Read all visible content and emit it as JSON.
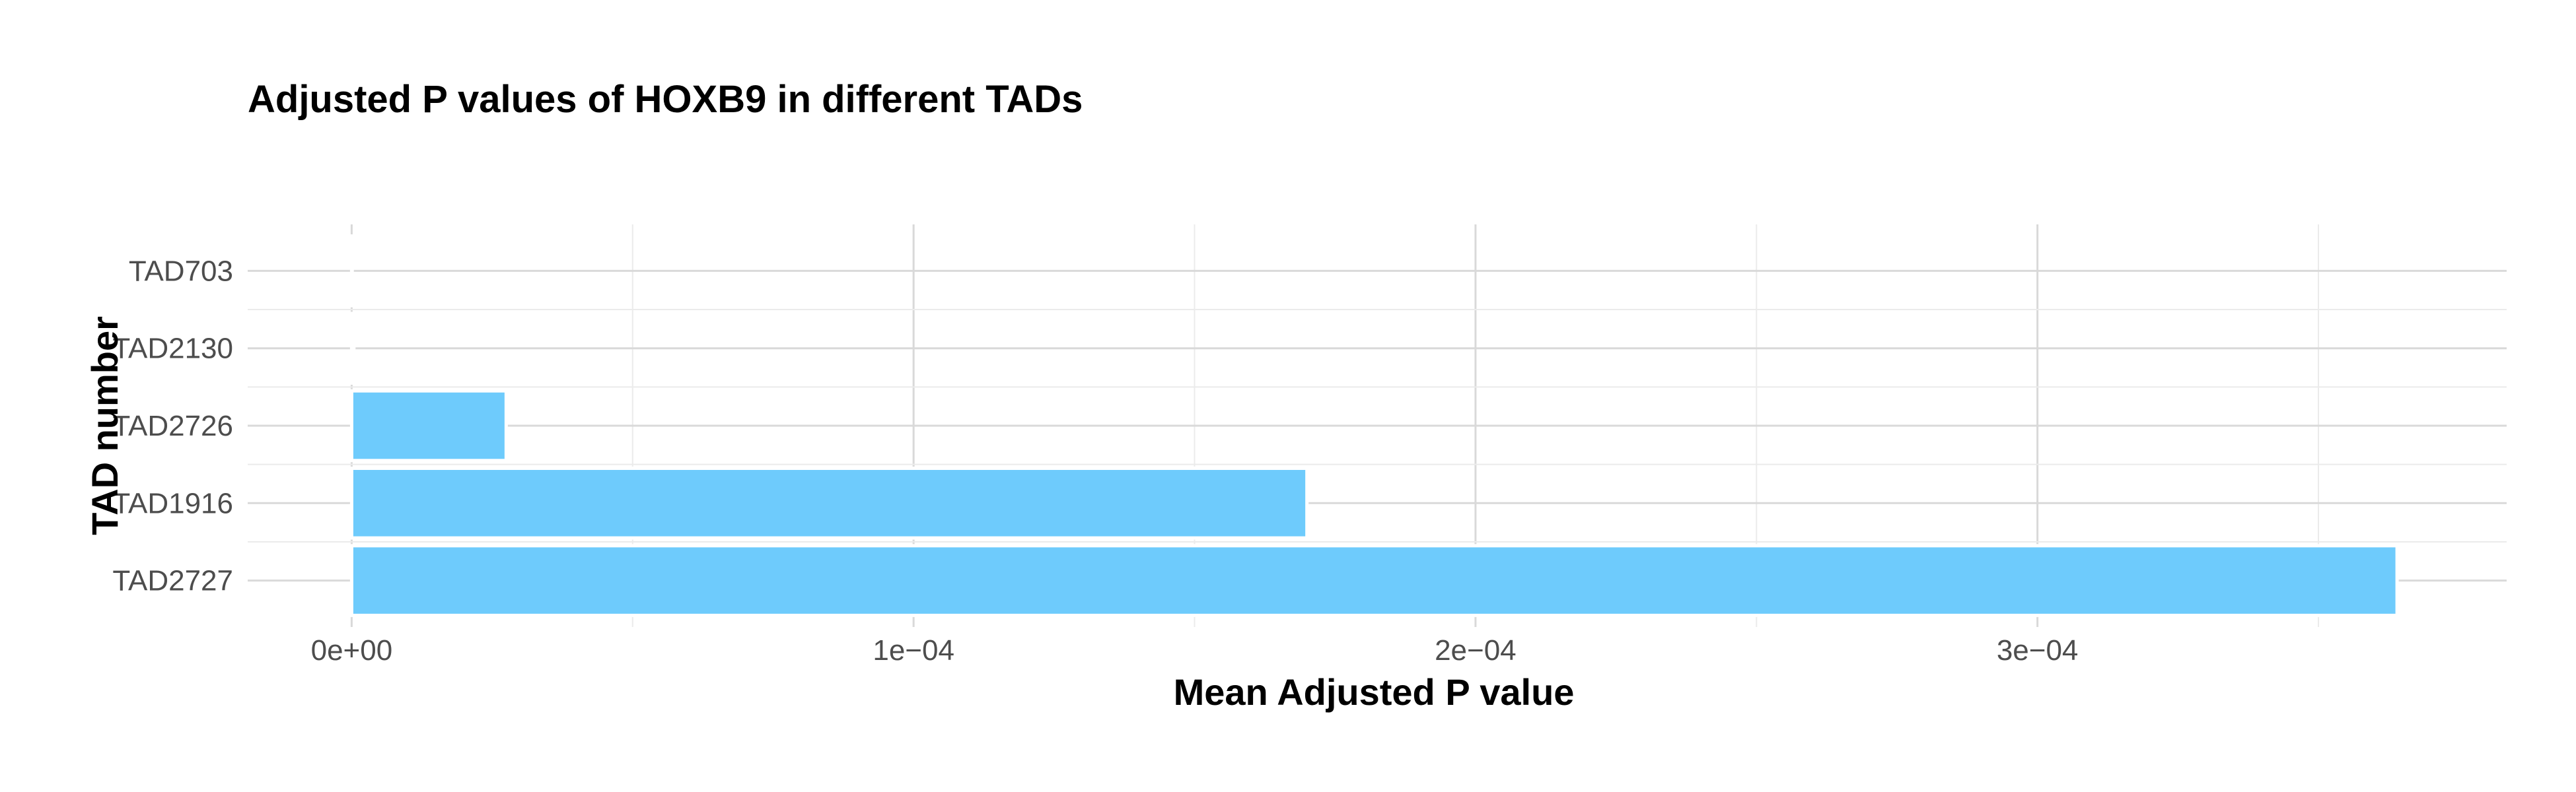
{
  "chart_data": {
    "type": "bar",
    "orientation": "horizontal",
    "title": "Adjusted P values of HOXB9 in different TADs",
    "xlabel": "Mean Adjusted P value",
    "ylabel": "TAD number",
    "categories": [
      "TAD703",
      "TAD2130",
      "TAD2726",
      "TAD1916",
      "TAD2727"
    ],
    "values": [
      1e-07,
      4e-07,
      2.75e-05,
      0.00017,
      0.000364
    ],
    "xlim": [
      -1.85e-05,
      0.0003835
    ],
    "x_ticks": [
      0,
      0.0001,
      0.0002,
      0.0003
    ],
    "x_tick_labels": [
      "0e+00",
      "1e−04",
      "2e−04",
      "3e−04"
    ],
    "x_minor_ticks": [
      5e-05,
      0.00015,
      0.00025,
      0.00035
    ],
    "grid": true,
    "legend": "none",
    "colors": {
      "bar_fill": "#6ecbfc",
      "bar_outline": "#ffffff",
      "grid_major": "#d9d9d9",
      "grid_minor": "#ebebeb",
      "background": "#ffffff"
    }
  }
}
